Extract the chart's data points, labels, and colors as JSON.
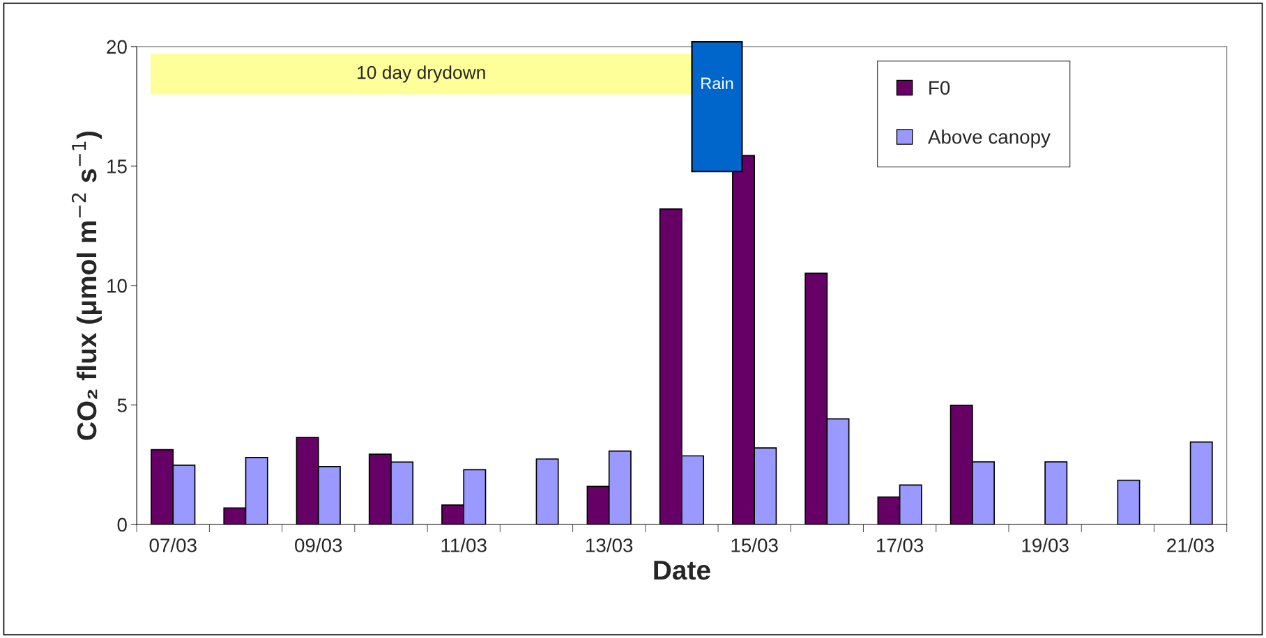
{
  "chart_data": {
    "type": "bar",
    "xlabel": "Date",
    "ylabel": "CO₂ flux (μmol m$^{−2}$ s$^{−1}$)",
    "categories": [
      "07/03",
      null,
      "09/03",
      null,
      "11/03",
      null,
      "13/03",
      null,
      "15/03",
      null,
      "17/03",
      null,
      "19/03",
      null,
      "21/03"
    ],
    "series": [
      {
        "name": "F0",
        "color": "#660066",
        "values": [
          3.13,
          0.69,
          3.64,
          2.94,
          0.81,
          null,
          1.59,
          13.2,
          15.44,
          10.51,
          1.15,
          4.99,
          null,
          null,
          null
        ]
      },
      {
        "name": "Above canopy",
        "color": "#9999ff",
        "values": [
          2.48,
          2.8,
          2.42,
          2.61,
          2.29,
          2.74,
          3.07,
          2.87,
          3.2,
          4.42,
          1.65,
          2.62,
          2.62,
          1.85,
          3.45
        ]
      }
    ],
    "ylim": [
      0,
      20
    ],
    "yticks": [
      0,
      5,
      10,
      15,
      20
    ],
    "annotations": [
      "Rain"
    ],
    "bands": [
      {
        "axis": "y",
        "from": 18,
        "to": 19.7,
        "label": "10 day drydown",
        "color": "#ffff99"
      }
    ],
    "legend": "top right",
    "grid": false
  }
}
